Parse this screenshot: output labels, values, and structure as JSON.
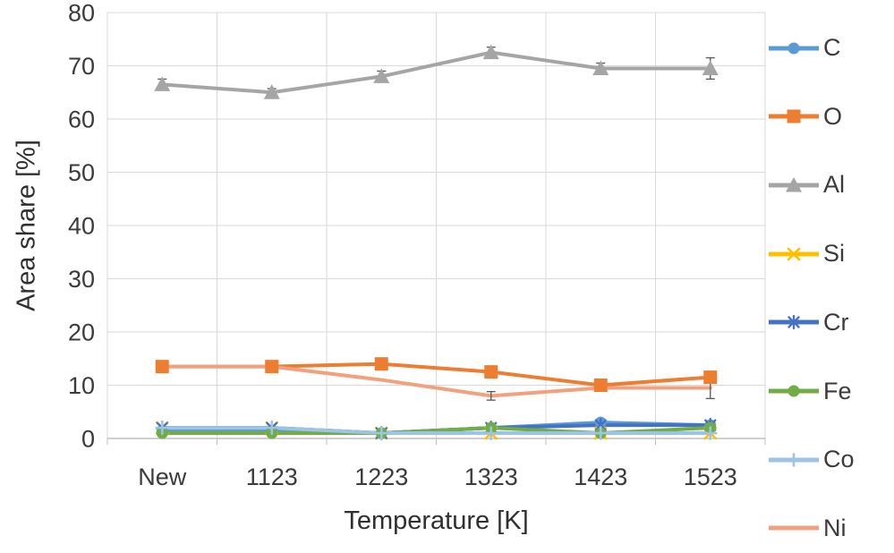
{
  "chart_data": {
    "type": "line",
    "title": "",
    "xlabel": "Temperature [K]",
    "ylabel": "Area share [%]",
    "categories": [
      "New",
      "1123",
      "1223",
      "1323",
      "1423",
      "1523"
    ],
    "ylim": [
      0,
      80
    ],
    "yticks": [
      0,
      10,
      20,
      30,
      40,
      50,
      60,
      70,
      80
    ],
    "grid": true,
    "legend_position": "right",
    "series": [
      {
        "name": "C",
        "color": "#5B9BD5",
        "marker": "circle",
        "values": [
          1.5,
          1.5,
          1,
          2,
          3,
          2.5
        ]
      },
      {
        "name": "O",
        "color": "#ED7D31",
        "marker": "square",
        "values": [
          13.5,
          13.5,
          14,
          12.5,
          10,
          11.5
        ]
      },
      {
        "name": "Al",
        "color": "#A5A5A5",
        "marker": "triangle",
        "values": [
          66.5,
          65,
          68,
          72.5,
          69.5,
          69.5
        ],
        "error": [
          1,
          0.7,
          1,
          1,
          1,
          2
        ]
      },
      {
        "name": "Si",
        "color": "#FFC000",
        "marker": "x",
        "values": [
          2,
          2,
          1,
          1,
          1,
          1
        ]
      },
      {
        "name": "Cr",
        "color": "#4472C4",
        "marker": "asterisk",
        "values": [
          2,
          2,
          1,
          2,
          2.5,
          2.5
        ]
      },
      {
        "name": "Fe",
        "color": "#70AD47",
        "marker": "circle",
        "values": [
          1,
          1,
          1,
          2,
          1,
          2
        ]
      },
      {
        "name": "Co",
        "color": "#9DC3E6",
        "marker": "plus",
        "values": [
          2,
          2,
          1,
          1,
          1,
          1
        ]
      },
      {
        "name": "Ni",
        "color": "#F2A17C",
        "marker": "none",
        "values": [
          13.5,
          13.5,
          11,
          8,
          9.5,
          9.5
        ],
        "error": [
          0,
          0,
          0,
          0.8,
          0,
          2
        ]
      }
    ]
  }
}
